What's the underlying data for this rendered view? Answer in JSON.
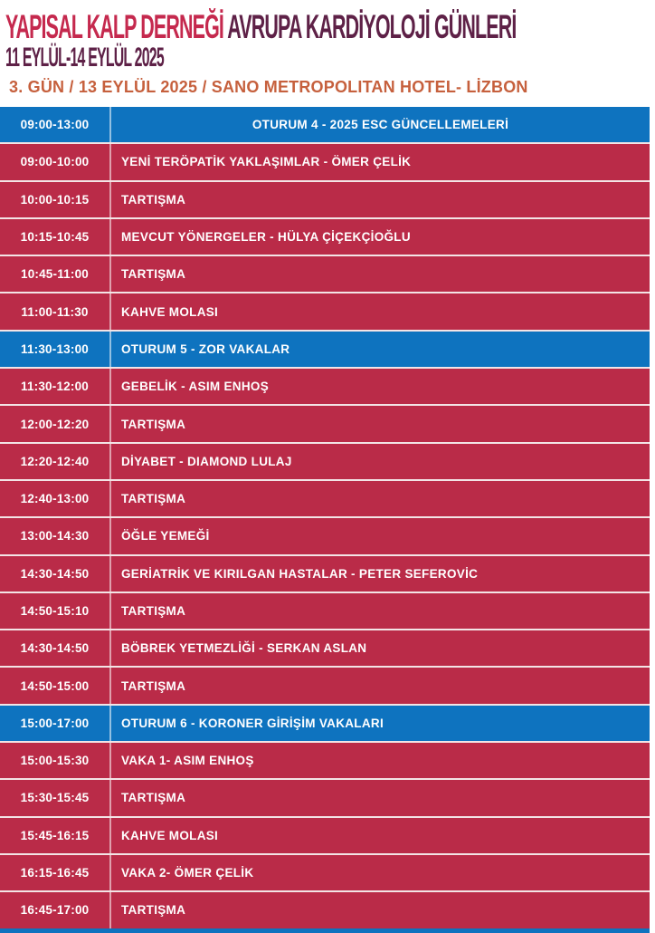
{
  "header": {
    "title_red": "YAPISAL KALP DERNEĞİ",
    "title_dark": " AVRUPA KARDİYOLOJİ GÜNLERİ",
    "date_range": "11 EYLÜL-14 EYLÜL 2025",
    "day_line": "3. GÜN / 13 EYLÜL 2025 / SANO METROPOLITAN HOTEL- LİZBON"
  },
  "colors": {
    "session_blue": "#0e73bf",
    "item_red": "#ba2b48",
    "title_red": "#c5294e",
    "title_dark": "#5e2147",
    "day_orange": "#c6603d",
    "row_gap": "#f3e4e6"
  },
  "schedule": {
    "rows": [
      {
        "time": "09:00-13:00",
        "title": "OTURUM 4 - 2025 ESC GÜNCELLEMELERİ",
        "type": "session",
        "align": "center"
      },
      {
        "time": "09:00-10:00",
        "title": "YENİ TERÖPATİK YAKLAŞIMLAR - ÖMER ÇELİK",
        "type": "item",
        "align": "left"
      },
      {
        "time": "10:00-10:15",
        "title": "TARTIŞMA",
        "type": "item",
        "align": "left"
      },
      {
        "time": "10:15-10:45",
        "title": "MEVCUT YÖNERGELER - HÜLYA ÇİÇEKÇİOĞLU",
        "type": "item",
        "align": "left"
      },
      {
        "time": "10:45-11:00",
        "title": "TARTIŞMA",
        "type": "item",
        "align": "left"
      },
      {
        "time": "11:00-11:30",
        "title": "KAHVE MOLASI",
        "type": "item",
        "align": "left"
      },
      {
        "time": "11:30-13:00",
        "title": "OTURUM 5 - ZOR VAKALAR",
        "type": "session",
        "align": "left"
      },
      {
        "time": "11:30-12:00",
        "title": "GEBELİK - ASIM ENHOŞ",
        "type": "item",
        "align": "left"
      },
      {
        "time": "12:00-12:20",
        "title": "TARTIŞMA",
        "type": "item",
        "align": "left"
      },
      {
        "time": "12:20-12:40",
        "title": "DİYABET - DIAMOND LULAJ",
        "type": "item",
        "align": "left"
      },
      {
        "time": "12:40-13:00",
        "title": "TARTIŞMA",
        "type": "item",
        "align": "left"
      },
      {
        "time": "13:00-14:30",
        "title": "ÖĞLE YEMEĞİ",
        "type": "item",
        "align": "left"
      },
      {
        "time": "14:30-14:50",
        "title": "GERİATRİK VE KIRILGAN HASTALAR - PETER SEFEROVİC",
        "type": "item",
        "align": "left"
      },
      {
        "time": "14:50-15:10",
        "title": "TARTIŞMA",
        "type": "item",
        "align": "left"
      },
      {
        "time": "14:30-14:50",
        "title": "BÖBREK YETMEZLİĞİ - SERKAN ASLAN",
        "type": "item",
        "align": "left"
      },
      {
        "time": "14:50-15:00",
        "title": "TARTIŞMA",
        "type": "item",
        "align": "left"
      },
      {
        "time": "15:00-17:00",
        "title": "OTURUM 6 - KORONER GİRİŞİM VAKALARI",
        "type": "session",
        "align": "left"
      },
      {
        "time": "15:00-15:30",
        "title": "VAKA 1- ASIM ENHOŞ",
        "type": "item",
        "align": "left"
      },
      {
        "time": "15:30-15:45",
        "title": "TARTIŞMA",
        "type": "item",
        "align": "left"
      },
      {
        "time": "15:45-16:15",
        "title": "KAHVE MOLASI",
        "type": "item",
        "align": "left"
      },
      {
        "time": "16:15-16:45",
        "title": "VAKA 2- ÖMER ÇELİK",
        "type": "item",
        "align": "left"
      },
      {
        "time": "16:45-17:00",
        "title": "TARTIŞMA",
        "type": "item",
        "align": "left"
      }
    ]
  }
}
